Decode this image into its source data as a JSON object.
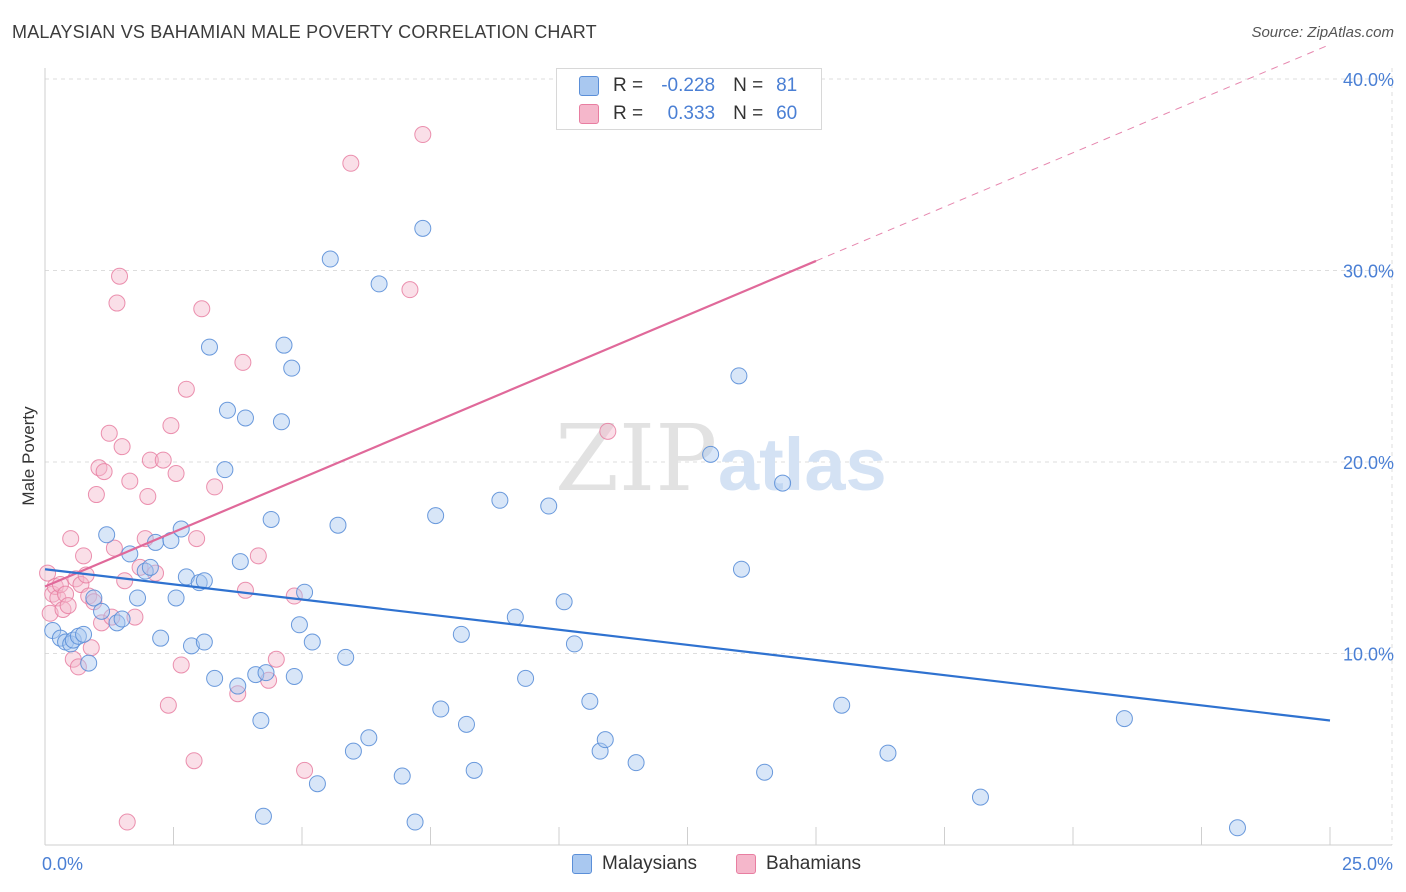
{
  "title": "MALAYSIAN VS BAHAMIAN MALE POVERTY CORRELATION CHART",
  "source": "Source: ZipAtlas.com",
  "watermark": {
    "zip": "ZIP",
    "atlas": "atlas"
  },
  "legend": {
    "rows": [
      {
        "r_label": "R =",
        "r_value": "-0.228",
        "n_label": "N =",
        "n_value": "81"
      },
      {
        "r_label": "R =",
        "r_value": "0.333",
        "n_label": "N =",
        "n_value": "60"
      }
    ]
  },
  "bottom_legend": [
    "Malaysians",
    "Bahamians"
  ],
  "colors": {
    "blue_fill": "#a9c8f0",
    "blue_stroke": "#5b8fd8",
    "blue_line": "#2f72d0",
    "pink_fill": "#f5b7cb",
    "pink_stroke": "#e87ea1",
    "pink_line": "#e0699a",
    "tick_text": "#4a7fd4",
    "grid": "#dddddd"
  },
  "chart_data": {
    "type": "scatter",
    "title": "MALAYSIAN VS BAHAMIAN MALE POVERTY CORRELATION CHART",
    "xlabel": "",
    "ylabel": "Male Poverty",
    "xlim": [
      0,
      25
    ],
    "ylim": [
      0,
      40
    ],
    "x_tick_labels": [
      "0.0%",
      "25.0%"
    ],
    "y_ticks": [
      10,
      20,
      30,
      40
    ],
    "y_tick_labels": [
      "10.0%",
      "20.0%",
      "30.0%",
      "40.0%"
    ],
    "grid": true,
    "legend_position": "top-center",
    "series": [
      {
        "name": "Malaysians",
        "R": -0.228,
        "N": 81,
        "trend": {
          "x": [
            0,
            25
          ],
          "y": [
            14.4,
            6.5
          ]
        },
        "points": [
          [
            0.15,
            11.2
          ],
          [
            0.3,
            10.8
          ],
          [
            0.4,
            10.6
          ],
          [
            0.5,
            10.5
          ],
          [
            0.55,
            10.7
          ],
          [
            0.65,
            10.9
          ],
          [
            0.75,
            11.0
          ],
          [
            0.85,
            9.5
          ],
          [
            0.95,
            12.9
          ],
          [
            1.1,
            12.2
          ],
          [
            1.2,
            16.2
          ],
          [
            1.4,
            11.6
          ],
          [
            1.5,
            11.8
          ],
          [
            1.65,
            15.2
          ],
          [
            1.8,
            12.9
          ],
          [
            1.95,
            14.3
          ],
          [
            2.05,
            14.5
          ],
          [
            2.15,
            15.8
          ],
          [
            2.25,
            10.8
          ],
          [
            2.45,
            15.9
          ],
          [
            2.55,
            12.9
          ],
          [
            2.65,
            16.5
          ],
          [
            2.75,
            14.0
          ],
          [
            2.85,
            10.4
          ],
          [
            3.0,
            13.7
          ],
          [
            3.1,
            10.6
          ],
          [
            3.2,
            26.0
          ],
          [
            3.3,
            8.7
          ],
          [
            3.5,
            19.6
          ],
          [
            3.55,
            22.7
          ],
          [
            3.75,
            8.3
          ],
          [
            3.8,
            14.8
          ],
          [
            3.9,
            22.3
          ],
          [
            4.1,
            8.9
          ],
          [
            4.2,
            6.5
          ],
          [
            4.3,
            9.0
          ],
          [
            4.4,
            17.0
          ],
          [
            4.6,
            22.1
          ],
          [
            4.65,
            26.1
          ],
          [
            4.8,
            24.9
          ],
          [
            4.85,
            8.8
          ],
          [
            4.95,
            11.5
          ],
          [
            5.05,
            13.2
          ],
          [
            5.2,
            10.6
          ],
          [
            5.3,
            3.2
          ],
          [
            5.55,
            30.6
          ],
          [
            5.7,
            16.7
          ],
          [
            5.85,
            9.8
          ],
          [
            6.0,
            4.9
          ],
          [
            6.3,
            5.6
          ],
          [
            6.5,
            29.3
          ],
          [
            6.95,
            3.6
          ],
          [
            7.2,
            1.2
          ],
          [
            7.35,
            32.2
          ],
          [
            7.6,
            17.2
          ],
          [
            7.7,
            7.1
          ],
          [
            8.1,
            11.0
          ],
          [
            8.2,
            6.3
          ],
          [
            8.35,
            3.9
          ],
          [
            8.85,
            18.0
          ],
          [
            9.15,
            11.9
          ],
          [
            9.35,
            8.7
          ],
          [
            9.8,
            17.7
          ],
          [
            10.1,
            12.7
          ],
          [
            10.3,
            10.5
          ],
          [
            10.6,
            7.5
          ],
          [
            10.8,
            4.9
          ],
          [
            10.9,
            5.5
          ],
          [
            11.5,
            4.3
          ],
          [
            12.95,
            20.4
          ],
          [
            13.5,
            24.5
          ],
          [
            13.55,
            14.4
          ],
          [
            14.0,
            3.8
          ],
          [
            14.35,
            18.9
          ],
          [
            15.5,
            7.3
          ],
          [
            16.4,
            4.8
          ],
          [
            18.2,
            2.5
          ],
          [
            21.0,
            6.6
          ],
          [
            23.2,
            0.9
          ],
          [
            4.25,
            1.5
          ],
          [
            3.1,
            13.8
          ]
        ]
      },
      {
        "name": "Bahamians",
        "R": 0.333,
        "N": 60,
        "trend_solid": {
          "x": [
            0,
            15
          ],
          "y": [
            13.5,
            30.5
          ]
        },
        "trend_dashed": {
          "x": [
            15,
            25
          ],
          "y": [
            30.5,
            41.8
          ]
        },
        "points": [
          [
            0.05,
            14.2
          ],
          [
            0.1,
            12.1
          ],
          [
            0.15,
            13.1
          ],
          [
            0.2,
            13.5
          ],
          [
            0.25,
            12.9
          ],
          [
            0.3,
            13.6
          ],
          [
            0.35,
            12.3
          ],
          [
            0.4,
            13.1
          ],
          [
            0.45,
            12.5
          ],
          [
            0.5,
            16.0
          ],
          [
            0.55,
            9.7
          ],
          [
            0.6,
            13.9
          ],
          [
            0.65,
            9.3
          ],
          [
            0.7,
            13.6
          ],
          [
            0.75,
            15.1
          ],
          [
            0.8,
            14.1
          ],
          [
            0.85,
            13.0
          ],
          [
            0.9,
            10.3
          ],
          [
            0.95,
            12.7
          ],
          [
            1.0,
            18.3
          ],
          [
            1.05,
            19.7
          ],
          [
            1.1,
            11.6
          ],
          [
            1.15,
            19.5
          ],
          [
            1.25,
            21.5
          ],
          [
            1.3,
            11.9
          ],
          [
            1.35,
            15.5
          ],
          [
            1.4,
            28.3
          ],
          [
            1.45,
            29.7
          ],
          [
            1.5,
            20.8
          ],
          [
            1.55,
            13.8
          ],
          [
            1.65,
            19.0
          ],
          [
            1.75,
            11.9
          ],
          [
            1.85,
            14.5
          ],
          [
            1.95,
            16.0
          ],
          [
            2.0,
            18.2
          ],
          [
            2.05,
            20.1
          ],
          [
            2.15,
            14.2
          ],
          [
            2.3,
            20.1
          ],
          [
            2.4,
            7.3
          ],
          [
            2.45,
            21.9
          ],
          [
            2.55,
            19.4
          ],
          [
            2.65,
            9.4
          ],
          [
            2.75,
            23.8
          ],
          [
            2.9,
            4.4
          ],
          [
            2.95,
            16.0
          ],
          [
            3.05,
            28.0
          ],
          [
            3.3,
            18.7
          ],
          [
            3.75,
            7.9
          ],
          [
            3.85,
            25.2
          ],
          [
            3.9,
            13.3
          ],
          [
            4.15,
            15.1
          ],
          [
            4.35,
            8.6
          ],
          [
            4.5,
            9.7
          ],
          [
            4.85,
            13.0
          ],
          [
            5.05,
            3.9
          ],
          [
            5.95,
            35.6
          ],
          [
            7.1,
            29.0
          ],
          [
            7.35,
            37.1
          ],
          [
            10.95,
            21.6
          ],
          [
            1.6,
            1.2
          ]
        ]
      }
    ]
  }
}
